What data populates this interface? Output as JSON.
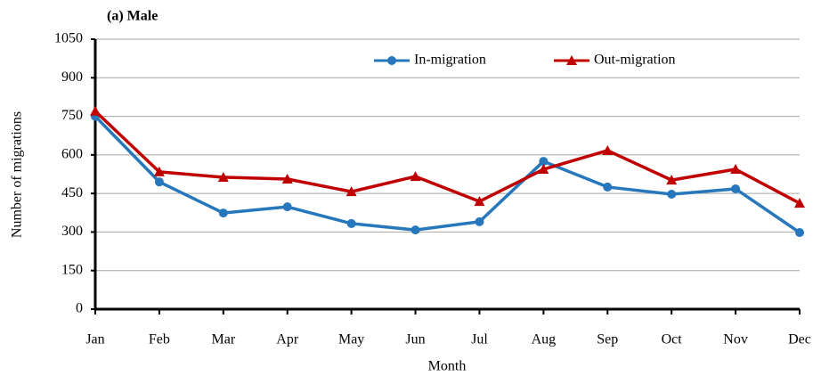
{
  "chart_data": {
    "type": "line",
    "title": "(a) Male",
    "x_label": "Month",
    "y_label": "Number of migrations",
    "categories": [
      "Jan",
      "Feb",
      "Mar",
      "Apr",
      "May",
      "Jun",
      "Jul",
      "Aug",
      "Sep",
      "Oct",
      "Nov",
      "Dec"
    ],
    "series": [
      {
        "name": "In-migration",
        "color": "#2677bb",
        "marker": "circle",
        "values": [
          750,
          495,
          374,
          398,
          333,
          308,
          340,
          575,
          475,
          447,
          468,
          298
        ]
      },
      {
        "name": "Out-migration",
        "color": "#c00000",
        "marker": "triangle",
        "values": [
          770,
          534,
          513,
          506,
          457,
          516,
          419,
          544,
          617,
          502,
          544,
          412
        ]
      }
    ],
    "ylim": [
      0,
      1050
    ],
    "yticks": [
      0,
      150,
      300,
      450,
      600,
      750,
      900,
      1050
    ],
    "grid": true
  }
}
